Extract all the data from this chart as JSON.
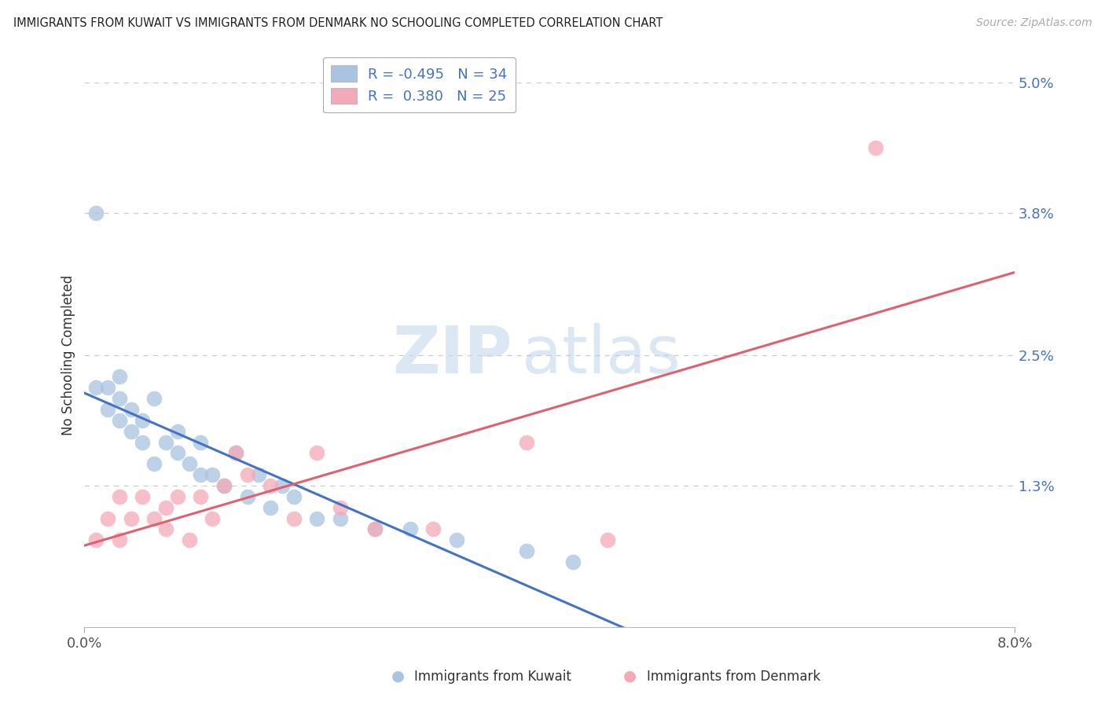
{
  "title": "IMMIGRANTS FROM KUWAIT VS IMMIGRANTS FROM DENMARK NO SCHOOLING COMPLETED CORRELATION CHART",
  "source": "Source: ZipAtlas.com",
  "ylabel": "No Schooling Completed",
  "xlim": [
    0.0,
    0.08
  ],
  "ylim": [
    0.0,
    0.05
  ],
  "ytick_labels_right": [
    "1.3%",
    "2.5%",
    "3.8%",
    "5.0%"
  ],
  "ytick_vals_right": [
    0.013,
    0.025,
    0.038,
    0.05
  ],
  "kuwait_color": "#a8c4e0",
  "denmark_color": "#f4a9b8",
  "kuwait_line_color": "#4472c4",
  "denmark_line_color": "#e06070",
  "kuwait_R": -0.495,
  "kuwait_N": 34,
  "denmark_R": 0.38,
  "denmark_N": 25,
  "background_color": "#ffffff",
  "grid_color": "#cccccc",
  "kuwait_x": [
    0.001,
    0.001,
    0.002,
    0.002,
    0.003,
    0.003,
    0.003,
    0.004,
    0.004,
    0.005,
    0.005,
    0.006,
    0.006,
    0.007,
    0.008,
    0.008,
    0.009,
    0.01,
    0.01,
    0.011,
    0.012,
    0.013,
    0.014,
    0.015,
    0.016,
    0.017,
    0.018,
    0.02,
    0.022,
    0.025,
    0.028,
    0.032,
    0.038,
    0.042
  ],
  "kuwait_y": [
    0.038,
    0.022,
    0.022,
    0.02,
    0.023,
    0.021,
    0.019,
    0.02,
    0.018,
    0.019,
    0.017,
    0.021,
    0.015,
    0.017,
    0.018,
    0.016,
    0.015,
    0.017,
    0.014,
    0.014,
    0.013,
    0.016,
    0.012,
    0.014,
    0.011,
    0.013,
    0.012,
    0.01,
    0.01,
    0.009,
    0.009,
    0.008,
    0.007,
    0.006
  ],
  "denmark_x": [
    0.001,
    0.002,
    0.003,
    0.003,
    0.004,
    0.005,
    0.006,
    0.007,
    0.007,
    0.008,
    0.009,
    0.01,
    0.011,
    0.012,
    0.013,
    0.014,
    0.016,
    0.018,
    0.02,
    0.022,
    0.025,
    0.03,
    0.038,
    0.045,
    0.068
  ],
  "denmark_y": [
    0.008,
    0.01,
    0.012,
    0.008,
    0.01,
    0.012,
    0.01,
    0.011,
    0.009,
    0.012,
    0.008,
    0.012,
    0.01,
    0.013,
    0.016,
    0.014,
    0.013,
    0.01,
    0.016,
    0.011,
    0.009,
    0.009,
    0.017,
    0.008,
    0.044
  ]
}
